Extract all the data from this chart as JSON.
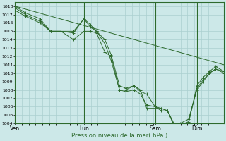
{
  "background_color": "#cce8e8",
  "grid_color": "#aacfcf",
  "line_color": "#2d6a2d",
  "xlabel": "Pression niveau de la mer( hPa )",
  "ylim": [
    1004,
    1018.5
  ],
  "ytick_min": 1004,
  "ytick_max": 1018,
  "xtick_labels": [
    "Ven",
    "Lun",
    "Sam",
    "Dim"
  ],
  "xtick_positions": [
    0.0,
    0.33,
    0.67,
    0.87
  ],
  "xlim": [
    0.0,
    1.0
  ],
  "vline_positions": [
    0.0,
    0.33,
    0.67,
    0.87
  ],
  "series_bundled": [
    [
      [
        0.0,
        1018.0
      ],
      [
        0.05,
        1017.2
      ],
      [
        0.12,
        1016.5
      ],
      [
        0.17,
        1015.0
      ],
      [
        0.22,
        1015.0
      ],
      [
        0.28,
        1015.0
      ],
      [
        0.33,
        1016.5
      ],
      [
        0.36,
        1015.8
      ],
      [
        0.39,
        1015.0
      ],
      [
        0.43,
        1014.0
      ],
      [
        0.46,
        1012.2
      ],
      [
        0.5,
        1008.5
      ],
      [
        0.53,
        1008.2
      ],
      [
        0.57,
        1008.5
      ],
      [
        0.6,
        1007.8
      ],
      [
        0.63,
        1007.5
      ],
      [
        0.67,
        1006.0
      ],
      [
        0.7,
        1005.8
      ],
      [
        0.73,
        1005.5
      ],
      [
        0.76,
        1003.8
      ],
      [
        0.79,
        1003.8
      ],
      [
        0.83,
        1004.2
      ],
      [
        0.87,
        1008.2
      ],
      [
        0.9,
        1009.2
      ],
      [
        0.93,
        1010.0
      ],
      [
        0.96,
        1010.5
      ],
      [
        1.0,
        1010.2
      ]
    ],
    [
      [
        0.0,
        1017.8
      ],
      [
        0.05,
        1017.0
      ],
      [
        0.12,
        1016.2
      ],
      [
        0.17,
        1015.0
      ],
      [
        0.22,
        1015.0
      ],
      [
        0.28,
        1014.8
      ],
      [
        0.33,
        1016.5
      ],
      [
        0.36,
        1015.5
      ],
      [
        0.39,
        1015.0
      ],
      [
        0.43,
        1013.5
      ],
      [
        0.46,
        1011.5
      ],
      [
        0.5,
        1008.0
      ],
      [
        0.53,
        1007.8
      ],
      [
        0.57,
        1008.0
      ],
      [
        0.6,
        1007.5
      ],
      [
        0.63,
        1006.2
      ],
      [
        0.67,
        1006.0
      ],
      [
        0.7,
        1005.5
      ],
      [
        0.73,
        1005.5
      ],
      [
        0.76,
        1003.8
      ],
      [
        0.79,
        1003.8
      ],
      [
        0.83,
        1004.0
      ],
      [
        0.87,
        1008.5
      ],
      [
        0.9,
        1009.5
      ],
      [
        0.93,
        1010.2
      ],
      [
        0.96,
        1010.8
      ],
      [
        1.0,
        1010.2
      ]
    ],
    [
      [
        0.0,
        1017.5
      ],
      [
        0.05,
        1016.8
      ],
      [
        0.12,
        1016.0
      ],
      [
        0.17,
        1015.0
      ],
      [
        0.22,
        1015.0
      ],
      [
        0.28,
        1014.0
      ],
      [
        0.33,
        1015.0
      ],
      [
        0.36,
        1015.0
      ],
      [
        0.39,
        1014.8
      ],
      [
        0.43,
        1012.5
      ],
      [
        0.46,
        1012.0
      ],
      [
        0.5,
        1008.0
      ],
      [
        0.53,
        1008.0
      ],
      [
        0.57,
        1008.5
      ],
      [
        0.6,
        1008.0
      ],
      [
        0.63,
        1005.8
      ],
      [
        0.67,
        1005.8
      ],
      [
        0.7,
        1005.8
      ],
      [
        0.73,
        1005.5
      ],
      [
        0.76,
        1004.0
      ],
      [
        0.79,
        1004.0
      ],
      [
        0.83,
        1004.5
      ],
      [
        0.87,
        1008.0
      ],
      [
        0.9,
        1009.0
      ],
      [
        0.93,
        1010.0
      ],
      [
        0.96,
        1010.5
      ],
      [
        1.0,
        1010.0
      ]
    ],
    [
      [
        0.0,
        1018.0
      ],
      [
        1.0,
        1011.0
      ]
    ]
  ],
  "figsize": [
    3.2,
    2.0
  ],
  "dpi": 100
}
